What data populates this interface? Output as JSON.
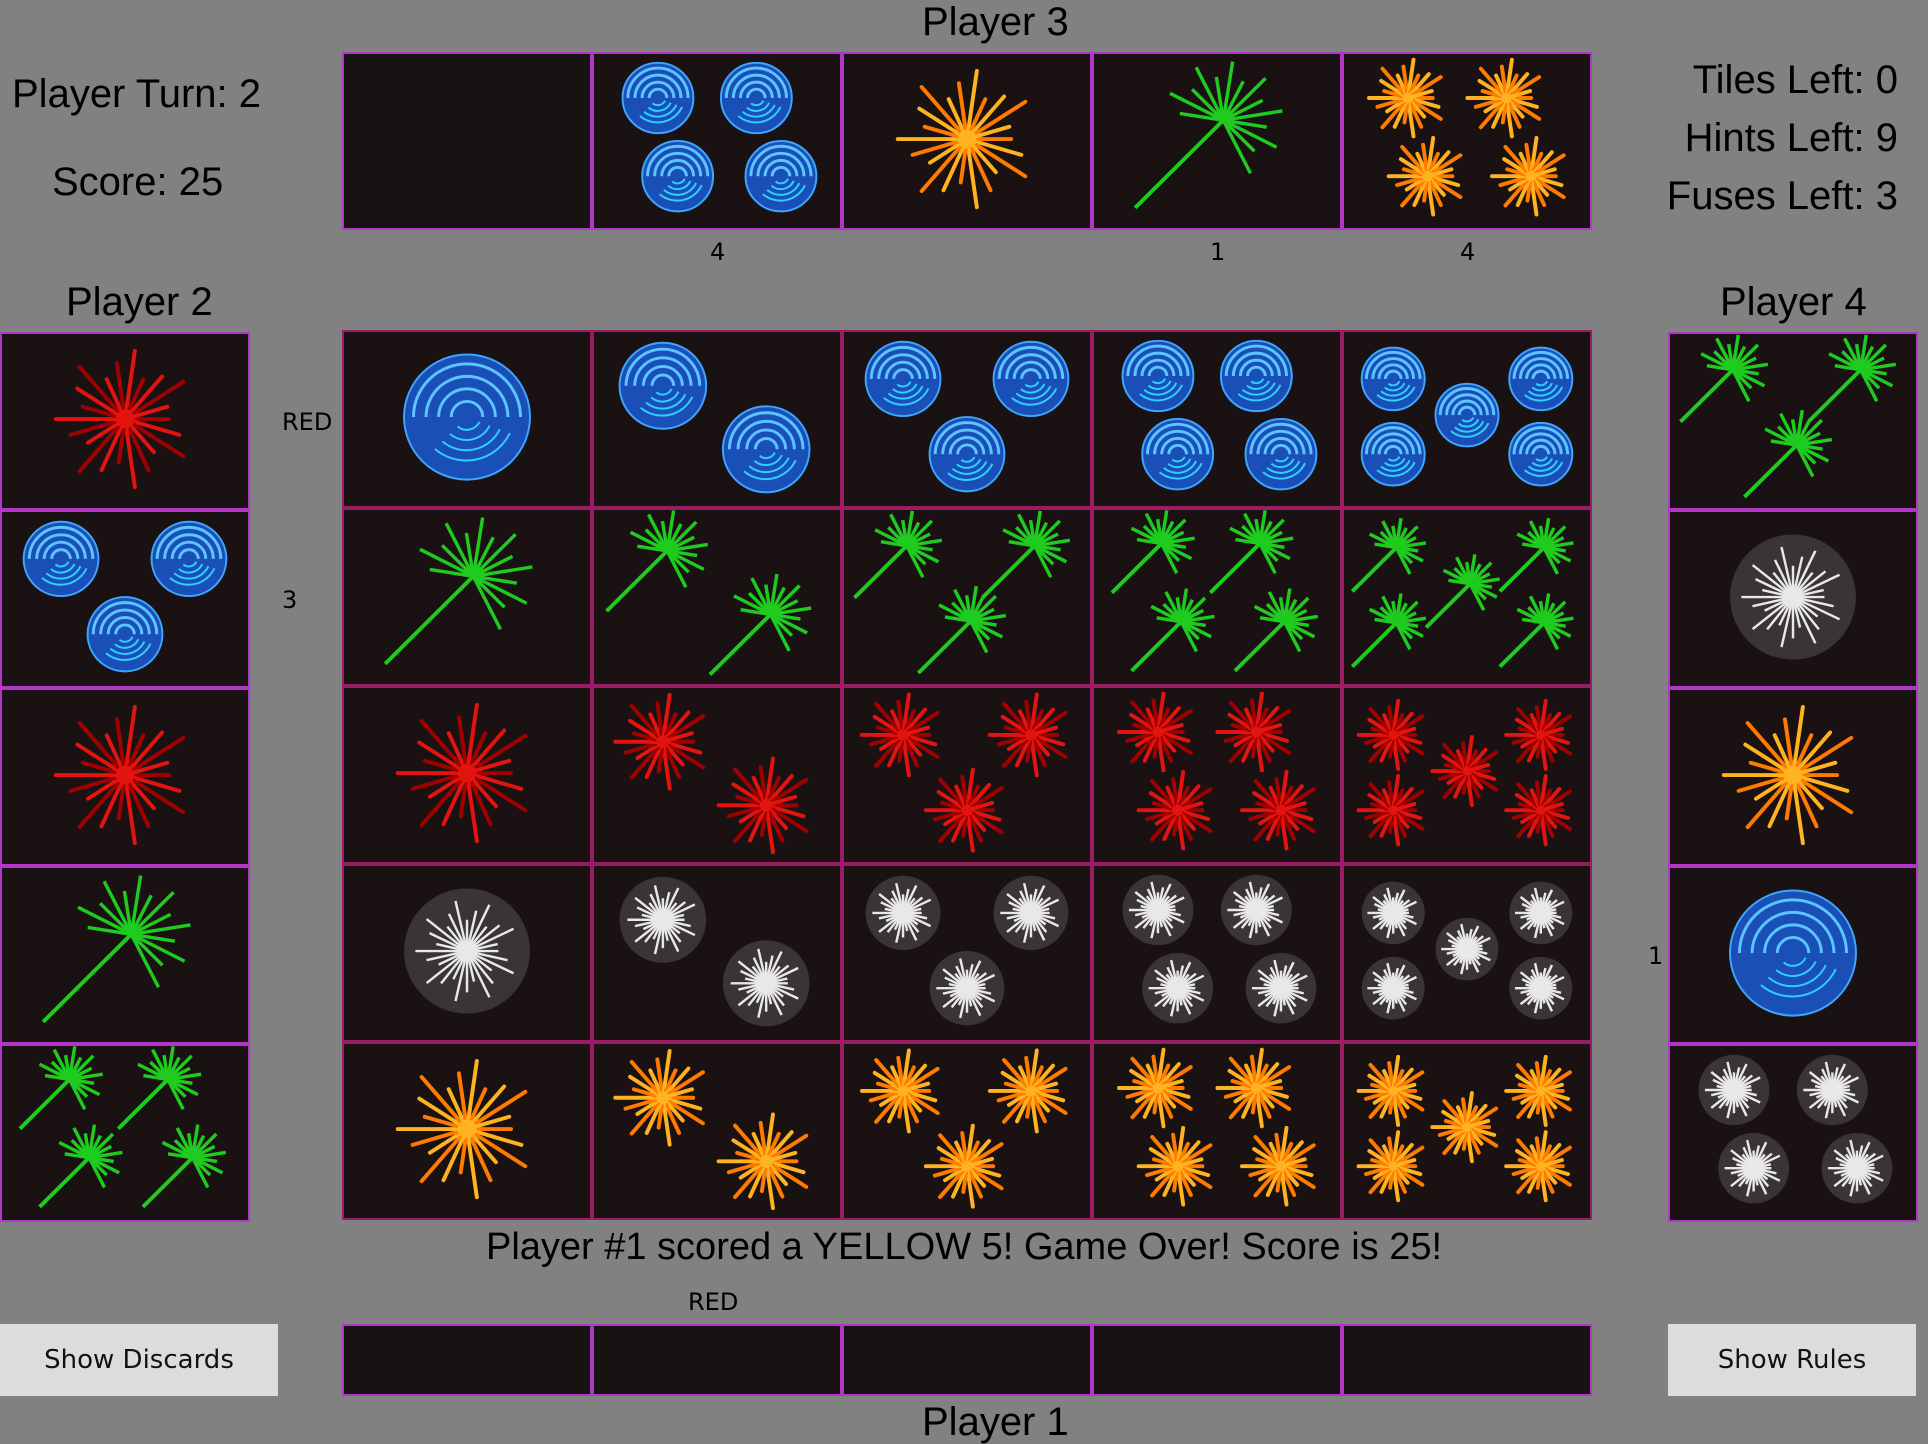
{
  "status": {
    "turn": "Player Turn: 2",
    "score": "Score: 25"
  },
  "counters": {
    "tiles": "Tiles Left: 0",
    "hints": "Hints Left: 9",
    "fuses": "Fuses Left: 3"
  },
  "message": "Player #1 scored a YELLOW 5! Game Over! Score is 25!",
  "buttons": {
    "discards": "Show Discards",
    "rules": "Show Rules"
  },
  "colors": {
    "blue": "#2a7fe6",
    "green": "#1ecb1e",
    "red": "#e3140f",
    "white": "#e8e8e8",
    "yellow": "#ffb320"
  },
  "board": {
    "rows": [
      {
        "color": "blue",
        "counts": [
          1,
          2,
          3,
          4,
          5
        ]
      },
      {
        "color": "green",
        "counts": [
          1,
          2,
          3,
          4,
          5
        ]
      },
      {
        "color": "red",
        "counts": [
          1,
          2,
          3,
          4,
          5
        ]
      },
      {
        "color": "white",
        "counts": [
          1,
          2,
          3,
          4,
          5
        ]
      },
      {
        "color": "yellow",
        "counts": [
          1,
          2,
          3,
          4,
          5
        ]
      }
    ]
  },
  "players": {
    "p1": {
      "name": "Player 1",
      "hint_text": "RED",
      "cards": []
    },
    "p2": {
      "name": "Player 2",
      "hints": [
        "RED",
        "3",
        "",
        "",
        ""
      ],
      "cards": [
        {
          "color": "red",
          "count": 1
        },
        {
          "color": "blue",
          "count": 3
        },
        {
          "color": "red",
          "count": 1
        },
        {
          "color": "green",
          "count": 1
        },
        {
          "color": "green",
          "count": 4
        }
      ]
    },
    "p3": {
      "name": "Player 3",
      "hints": [
        "",
        "4",
        "",
        "1",
        "4"
      ],
      "cards": [
        {
          "color": "none",
          "count": 0
        },
        {
          "color": "blue",
          "count": 4
        },
        {
          "color": "yellow",
          "count": 1
        },
        {
          "color": "green",
          "count": 1
        },
        {
          "color": "yellow",
          "count": 4
        }
      ]
    },
    "p4": {
      "name": "Player 4",
      "hints": [
        "",
        "",
        "",
        "1",
        ""
      ],
      "cards": [
        {
          "color": "green",
          "count": 3
        },
        {
          "color": "white",
          "count": 1
        },
        {
          "color": "yellow",
          "count": 1
        },
        {
          "color": "blue",
          "count": 1
        },
        {
          "color": "white",
          "count": 4
        }
      ]
    }
  }
}
